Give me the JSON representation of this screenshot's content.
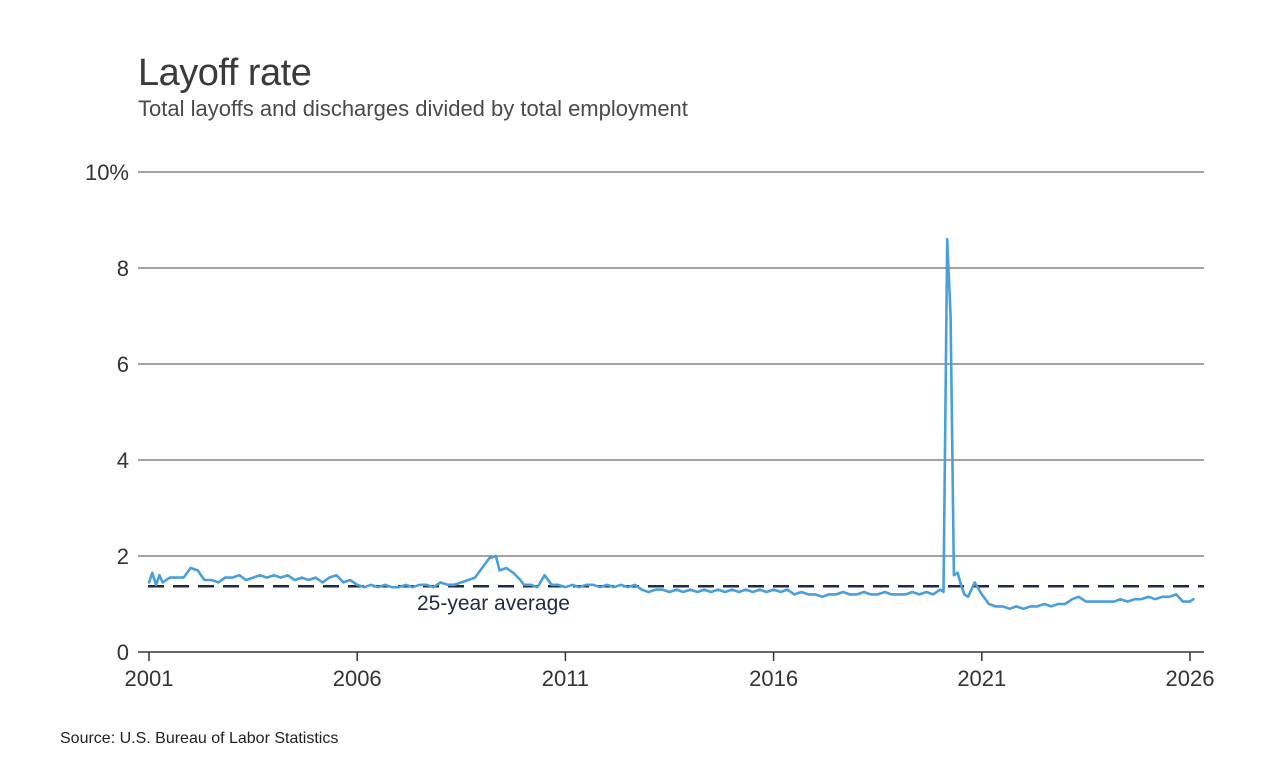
{
  "title": "Layoff rate",
  "subtitle": "Total layoffs and discharges divided by total employment",
  "source": "Source: U.S. Bureau of Labor Statistics",
  "chart_data": {
    "type": "line",
    "title": "Layoff rate",
    "subtitle": "Total layoffs and discharges divided by total employment",
    "xlabel": "",
    "ylabel": "",
    "xlim": [
      2001.0,
      2026.25
    ],
    "ylim": [
      0,
      10
    ],
    "y_ticks": [
      {
        "value": 0,
        "label": "0"
      },
      {
        "value": 2,
        "label": "2"
      },
      {
        "value": 4,
        "label": "4"
      },
      {
        "value": 6,
        "label": "6"
      },
      {
        "value": 8,
        "label": "8"
      },
      {
        "value": 10,
        "label": "10%"
      }
    ],
    "x_ticks": [
      {
        "value": 2001,
        "label": "2001"
      },
      {
        "value": 2006,
        "label": "2006"
      },
      {
        "value": 2011,
        "label": "2011"
      },
      {
        "value": 2016,
        "label": "2016"
      },
      {
        "value": 2021,
        "label": "2021"
      },
      {
        "value": 2026,
        "label": "2026"
      }
    ],
    "grid": "horizontal",
    "average_line": {
      "value": 1.37,
      "label": "25-year average"
    },
    "series": [
      {
        "color": "#4a9fdb",
        "points": [
          [
            2001.0,
            1.45
          ],
          [
            2001.08,
            1.65
          ],
          [
            2001.17,
            1.4
          ],
          [
            2001.25,
            1.6
          ],
          [
            2001.33,
            1.45
          ],
          [
            2001.5,
            1.55
          ],
          [
            2001.67,
            1.55
          ],
          [
            2001.83,
            1.55
          ],
          [
            2002.0,
            1.75
          ],
          [
            2002.17,
            1.7
          ],
          [
            2002.33,
            1.5
          ],
          [
            2002.5,
            1.5
          ],
          [
            2002.67,
            1.45
          ],
          [
            2002.83,
            1.55
          ],
          [
            2003.0,
            1.55
          ],
          [
            2003.17,
            1.6
          ],
          [
            2003.33,
            1.5
          ],
          [
            2003.5,
            1.55
          ],
          [
            2003.67,
            1.6
          ],
          [
            2003.83,
            1.55
          ],
          [
            2004.0,
            1.6
          ],
          [
            2004.17,
            1.55
          ],
          [
            2004.33,
            1.6
          ],
          [
            2004.5,
            1.5
          ],
          [
            2004.67,
            1.55
          ],
          [
            2004.83,
            1.5
          ],
          [
            2005.0,
            1.55
          ],
          [
            2005.17,
            1.45
          ],
          [
            2005.33,
            1.55
          ],
          [
            2005.5,
            1.6
          ],
          [
            2005.67,
            1.45
          ],
          [
            2005.83,
            1.5
          ],
          [
            2006.0,
            1.4
          ],
          [
            2006.17,
            1.35
          ],
          [
            2006.33,
            1.4
          ],
          [
            2006.5,
            1.35
          ],
          [
            2006.67,
            1.4
          ],
          [
            2006.83,
            1.35
          ],
          [
            2007.0,
            1.35
          ],
          [
            2007.17,
            1.4
          ],
          [
            2007.33,
            1.35
          ],
          [
            2007.5,
            1.4
          ],
          [
            2007.67,
            1.4
          ],
          [
            2007.83,
            1.35
          ],
          [
            2008.0,
            1.45
          ],
          [
            2008.17,
            1.4
          ],
          [
            2008.33,
            1.4
          ],
          [
            2008.5,
            1.45
          ],
          [
            2008.67,
            1.5
          ],
          [
            2008.83,
            1.55
          ],
          [
            2009.0,
            1.75
          ],
          [
            2009.17,
            1.95
          ],
          [
            2009.33,
            2.0
          ],
          [
            2009.42,
            1.7
          ],
          [
            2009.58,
            1.75
          ],
          [
            2009.75,
            1.65
          ],
          [
            2009.92,
            1.5
          ],
          [
            2010.0,
            1.4
          ],
          [
            2010.17,
            1.4
          ],
          [
            2010.33,
            1.35
          ],
          [
            2010.5,
            1.6
          ],
          [
            2010.67,
            1.4
          ],
          [
            2010.83,
            1.4
          ],
          [
            2011.0,
            1.35
          ],
          [
            2011.17,
            1.4
          ],
          [
            2011.33,
            1.35
          ],
          [
            2011.5,
            1.4
          ],
          [
            2011.67,
            1.4
          ],
          [
            2011.83,
            1.35
          ],
          [
            2012.0,
            1.4
          ],
          [
            2012.17,
            1.35
          ],
          [
            2012.33,
            1.4
          ],
          [
            2012.5,
            1.35
          ],
          [
            2012.67,
            1.4
          ],
          [
            2012.83,
            1.3
          ],
          [
            2013.0,
            1.25
          ],
          [
            2013.17,
            1.3
          ],
          [
            2013.33,
            1.3
          ],
          [
            2013.5,
            1.25
          ],
          [
            2013.67,
            1.3
          ],
          [
            2013.83,
            1.25
          ],
          [
            2014.0,
            1.3
          ],
          [
            2014.17,
            1.25
          ],
          [
            2014.33,
            1.3
          ],
          [
            2014.5,
            1.25
          ],
          [
            2014.67,
            1.3
          ],
          [
            2014.83,
            1.25
          ],
          [
            2015.0,
            1.3
          ],
          [
            2015.17,
            1.25
          ],
          [
            2015.33,
            1.3
          ],
          [
            2015.5,
            1.25
          ],
          [
            2015.67,
            1.3
          ],
          [
            2015.83,
            1.25
          ],
          [
            2016.0,
            1.3
          ],
          [
            2016.17,
            1.25
          ],
          [
            2016.33,
            1.3
          ],
          [
            2016.5,
            1.2
          ],
          [
            2016.67,
            1.25
          ],
          [
            2016.83,
            1.2
          ],
          [
            2017.0,
            1.2
          ],
          [
            2017.17,
            1.15
          ],
          [
            2017.33,
            1.2
          ],
          [
            2017.5,
            1.2
          ],
          [
            2017.67,
            1.25
          ],
          [
            2017.83,
            1.2
          ],
          [
            2018.0,
            1.2
          ],
          [
            2018.17,
            1.25
          ],
          [
            2018.33,
            1.2
          ],
          [
            2018.5,
            1.2
          ],
          [
            2018.67,
            1.25
          ],
          [
            2018.83,
            1.2
          ],
          [
            2019.0,
            1.2
          ],
          [
            2019.17,
            1.2
          ],
          [
            2019.33,
            1.25
          ],
          [
            2019.5,
            1.2
          ],
          [
            2019.67,
            1.25
          ],
          [
            2019.83,
            1.2
          ],
          [
            2020.0,
            1.3
          ],
          [
            2020.08,
            1.25
          ],
          [
            2020.17,
            8.6
          ],
          [
            2020.25,
            7.0
          ],
          [
            2020.33,
            1.6
          ],
          [
            2020.42,
            1.65
          ],
          [
            2020.5,
            1.4
          ],
          [
            2020.58,
            1.2
          ],
          [
            2020.67,
            1.15
          ],
          [
            2020.83,
            1.45
          ],
          [
            2021.0,
            1.2
          ],
          [
            2021.17,
            1.0
          ],
          [
            2021.33,
            0.95
          ],
          [
            2021.5,
            0.95
          ],
          [
            2021.67,
            0.9
          ],
          [
            2021.83,
            0.95
          ],
          [
            2022.0,
            0.9
          ],
          [
            2022.17,
            0.95
          ],
          [
            2022.33,
            0.95
          ],
          [
            2022.5,
            1.0
          ],
          [
            2022.67,
            0.95
          ],
          [
            2022.83,
            1.0
          ],
          [
            2023.0,
            1.0
          ],
          [
            2023.17,
            1.1
          ],
          [
            2023.33,
            1.15
          ],
          [
            2023.5,
            1.05
          ],
          [
            2023.67,
            1.05
          ],
          [
            2023.83,
            1.05
          ],
          [
            2024.0,
            1.05
          ],
          [
            2024.17,
            1.05
          ],
          [
            2024.33,
            1.1
          ],
          [
            2024.5,
            1.05
          ],
          [
            2024.67,
            1.1
          ],
          [
            2024.83,
            1.1
          ],
          [
            2025.0,
            1.15
          ],
          [
            2025.17,
            1.1
          ],
          [
            2025.33,
            1.15
          ],
          [
            2025.5,
            1.15
          ],
          [
            2025.67,
            1.2
          ],
          [
            2025.83,
            1.05
          ],
          [
            2026.0,
            1.05
          ],
          [
            2026.08,
            1.1
          ]
        ]
      }
    ]
  }
}
